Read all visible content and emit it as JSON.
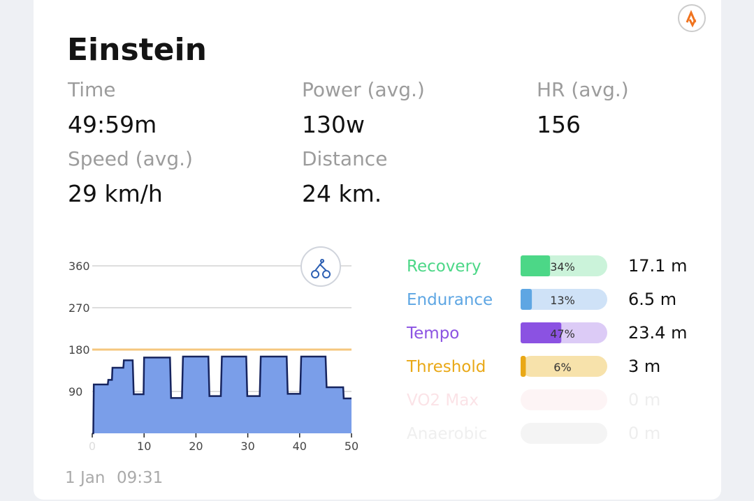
{
  "header": {
    "title": "Einstein"
  },
  "stats": [
    {
      "label": "Time",
      "value": "49:59m"
    },
    {
      "label": "Power (avg.)",
      "value": "130w"
    },
    {
      "label": "HR (avg.)",
      "value": "156"
    },
    {
      "label": "Speed (avg.)",
      "value": "29 km/h"
    },
    {
      "label": "Distance",
      "value": "24 km."
    }
  ],
  "chart_data": [
    {
      "type": "area",
      "x": [
        0,
        0.2,
        0.3,
        3,
        3.1,
        3.8,
        3.9,
        6,
        6.1,
        7.8,
        8,
        9.9,
        10,
        15,
        15.2,
        17.3,
        17.5,
        22.4,
        22.6,
        24.8,
        25,
        29.7,
        29.9,
        32.3,
        32.5,
        37.5,
        37.7,
        40.1,
        40.3,
        45,
        45.2,
        48.4,
        48.5,
        50
      ],
      "values": [
        0,
        0,
        105,
        105,
        115,
        115,
        141,
        141,
        157,
        157,
        84,
        84,
        163,
        163,
        76,
        76,
        165,
        165,
        80,
        80,
        165,
        165,
        80,
        80,
        165,
        165,
        85,
        85,
        165,
        165,
        99,
        99,
        75,
        75
      ],
      "color": "#7a9ee9",
      "line_color": "#16245f",
      "xlim": [
        0,
        50
      ],
      "xticks": [
        0,
        10,
        20,
        30,
        40,
        50
      ],
      "ylim": [
        0,
        360
      ],
      "yticks": [
        90,
        180,
        270,
        360
      ],
      "grid": true,
      "threshold": 180,
      "threshold_color": "#f5c77e"
    },
    {
      "type": "hbar",
      "categories": [
        "Recovery",
        "Endurance",
        "Tempo",
        "Threshold",
        "VO2 Max",
        "Anaerobic"
      ],
      "colors": [
        "#4cd787",
        "#5ea6e3",
        "#8b52e2",
        "#e9a816",
        "#fbe3e7",
        "#efefef"
      ],
      "track_colors": [
        "#cbf3da",
        "#cfe2f7",
        "#dccbf6",
        "#f7e2ab",
        "#fdf4f5",
        "#f4f4f4"
      ],
      "values": [
        34,
        13,
        47,
        6,
        0,
        0
      ],
      "value_labels": [
        "34%",
        "13%",
        "47%",
        "6%",
        null,
        null
      ],
      "times": [
        "17.1 m",
        "6.5 m",
        "23.4 m",
        "3 m",
        "0 m",
        "0 m"
      ],
      "xlim": [
        0,
        100
      ]
    }
  ],
  "footer": {
    "date": "1 Jan",
    "time": "09:31"
  }
}
